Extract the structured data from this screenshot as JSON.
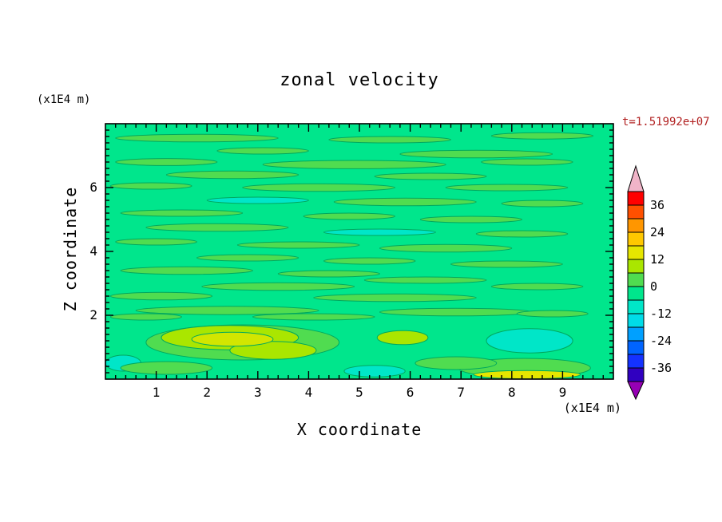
{
  "page": {
    "background": "#ffffff"
  },
  "chart_data": {
    "type": "heatmap",
    "title": "zonal velocity",
    "timestamp": "t=1.51992e+07",
    "timestamp_color": "#B22222",
    "xlabel": "X coordinate",
    "ylabel": "Z coordinate",
    "x_unit_label": "(x1E4 m)",
    "y_unit_label": "(x1E4 m)",
    "xlim": [
      0,
      10
    ],
    "ylim": [
      0,
      8
    ],
    "x_major_ticks": [
      1,
      2,
      3,
      4,
      5,
      6,
      7,
      8,
      9
    ],
    "y_major_ticks": [
      2,
      4,
      6
    ],
    "minor_tick_step": 0.2,
    "grid": false,
    "legend_position": "right",
    "field": {
      "background_color": "#00E68C",
      "contour_line_color": "#00A85E",
      "features": [
        {
          "x": 1.8,
          "y": 7.55,
          "rx": 1.6,
          "ry": 0.12,
          "fill": "#50DC50"
        },
        {
          "x": 5.6,
          "y": 7.5,
          "rx": 1.2,
          "ry": 0.1,
          "fill": "#50DC50"
        },
        {
          "x": 8.6,
          "y": 7.62,
          "rx": 1.0,
          "ry": 0.1,
          "fill": "#50DC50"
        },
        {
          "x": 3.1,
          "y": 7.15,
          "rx": 0.9,
          "ry": 0.1,
          "fill": "#50DC50"
        },
        {
          "x": 7.3,
          "y": 7.05,
          "rx": 1.5,
          "ry": 0.12,
          "fill": "#50DC50"
        },
        {
          "x": 1.2,
          "y": 6.8,
          "rx": 1.0,
          "ry": 0.11,
          "fill": "#50DC50"
        },
        {
          "x": 4.9,
          "y": 6.72,
          "rx": 1.8,
          "ry": 0.13,
          "fill": "#50DC50"
        },
        {
          "x": 8.3,
          "y": 6.8,
          "rx": 0.9,
          "ry": 0.1,
          "fill": "#50DC50"
        },
        {
          "x": 2.5,
          "y": 6.4,
          "rx": 1.3,
          "ry": 0.12,
          "fill": "#50DC50"
        },
        {
          "x": 6.4,
          "y": 6.35,
          "rx": 1.1,
          "ry": 0.1,
          "fill": "#50DC50"
        },
        {
          "x": 0.9,
          "y": 6.05,
          "rx": 0.8,
          "ry": 0.1,
          "fill": "#50DC50"
        },
        {
          "x": 4.2,
          "y": 6.0,
          "rx": 1.5,
          "ry": 0.12,
          "fill": "#50DC50"
        },
        {
          "x": 7.9,
          "y": 6.0,
          "rx": 1.2,
          "ry": 0.1,
          "fill": "#50DC50"
        },
        {
          "x": 3.0,
          "y": 5.6,
          "rx": 1.0,
          "ry": 0.1,
          "fill": "#00E6C8"
        },
        {
          "x": 5.9,
          "y": 5.55,
          "rx": 1.4,
          "ry": 0.12,
          "fill": "#50DC50"
        },
        {
          "x": 1.5,
          "y": 5.2,
          "rx": 1.2,
          "ry": 0.1,
          "fill": "#50DC50"
        },
        {
          "x": 8.6,
          "y": 5.5,
          "rx": 0.8,
          "ry": 0.1,
          "fill": "#50DC50"
        },
        {
          "x": 4.8,
          "y": 5.1,
          "rx": 0.9,
          "ry": 0.1,
          "fill": "#50DC50"
        },
        {
          "x": 7.2,
          "y": 5.0,
          "rx": 1.0,
          "ry": 0.1,
          "fill": "#50DC50"
        },
        {
          "x": 2.2,
          "y": 4.75,
          "rx": 1.4,
          "ry": 0.12,
          "fill": "#50DC50"
        },
        {
          "x": 5.4,
          "y": 4.6,
          "rx": 1.1,
          "ry": 0.1,
          "fill": "#00E6C8"
        },
        {
          "x": 8.2,
          "y": 4.55,
          "rx": 0.9,
          "ry": 0.1,
          "fill": "#50DC50"
        },
        {
          "x": 1.0,
          "y": 4.3,
          "rx": 0.8,
          "ry": 0.1,
          "fill": "#50DC50"
        },
        {
          "x": 3.8,
          "y": 4.2,
          "rx": 1.2,
          "ry": 0.1,
          "fill": "#50DC50"
        },
        {
          "x": 6.7,
          "y": 4.1,
          "rx": 1.3,
          "ry": 0.12,
          "fill": "#50DC50"
        },
        {
          "x": 2.8,
          "y": 3.8,
          "rx": 1.0,
          "ry": 0.1,
          "fill": "#50DC50"
        },
        {
          "x": 5.2,
          "y": 3.7,
          "rx": 0.9,
          "ry": 0.1,
          "fill": "#50DC50"
        },
        {
          "x": 7.9,
          "y": 3.6,
          "rx": 1.1,
          "ry": 0.1,
          "fill": "#50DC50"
        },
        {
          "x": 1.6,
          "y": 3.4,
          "rx": 1.3,
          "ry": 0.12,
          "fill": "#50DC50"
        },
        {
          "x": 4.4,
          "y": 3.3,
          "rx": 1.0,
          "ry": 0.1,
          "fill": "#50DC50"
        },
        {
          "x": 6.3,
          "y": 3.1,
          "rx": 1.2,
          "ry": 0.1,
          "fill": "#50DC50"
        },
        {
          "x": 3.4,
          "y": 2.9,
          "rx": 1.5,
          "ry": 0.12,
          "fill": "#50DC50"
        },
        {
          "x": 8.5,
          "y": 2.9,
          "rx": 0.9,
          "ry": 0.1,
          "fill": "#50DC50"
        },
        {
          "x": 1.1,
          "y": 2.6,
          "rx": 1.0,
          "ry": 0.12,
          "fill": "#50DC50"
        },
        {
          "x": 5.7,
          "y": 2.55,
          "rx": 1.6,
          "ry": 0.12,
          "fill": "#50DC50"
        },
        {
          "x": 2.4,
          "y": 2.15,
          "rx": 1.8,
          "ry": 0.13,
          "fill": "#50DC50"
        },
        {
          "x": 6.9,
          "y": 2.1,
          "rx": 1.5,
          "ry": 0.12,
          "fill": "#50DC50"
        },
        {
          "x": 4.1,
          "y": 1.95,
          "rx": 1.2,
          "ry": 0.1,
          "fill": "#50DC50"
        },
        {
          "x": 8.8,
          "y": 2.05,
          "rx": 0.7,
          "ry": 0.1,
          "fill": "#50DC50"
        },
        {
          "x": 0.8,
          "y": 1.95,
          "rx": 0.7,
          "ry": 0.1,
          "fill": "#50DC50"
        },
        {
          "x": 2.7,
          "y": 1.15,
          "rx": 1.9,
          "ry": 0.55,
          "fill": "#50DC50"
        },
        {
          "x": 2.45,
          "y": 1.3,
          "rx": 1.35,
          "ry": 0.38,
          "fill": "#AAE600"
        },
        {
          "x": 3.3,
          "y": 0.9,
          "rx": 0.85,
          "ry": 0.28,
          "fill": "#AAE600"
        },
        {
          "x": 2.5,
          "y": 1.25,
          "rx": 0.8,
          "ry": 0.22,
          "fill": "#D2E600"
        },
        {
          "x": 5.85,
          "y": 1.3,
          "rx": 0.5,
          "ry": 0.22,
          "fill": "#AAE600"
        },
        {
          "x": 8.35,
          "y": 1.2,
          "rx": 0.85,
          "ry": 0.38,
          "fill": "#00E6C8"
        },
        {
          "x": 0.35,
          "y": 0.5,
          "rx": 0.35,
          "ry": 0.25,
          "fill": "#00E6C8"
        },
        {
          "x": 5.3,
          "y": 0.25,
          "rx": 0.6,
          "ry": 0.18,
          "fill": "#00E6C8"
        },
        {
          "x": 8.25,
          "y": 0.35,
          "rx": 1.3,
          "ry": 0.3,
          "fill": "#50DC50"
        },
        {
          "x": 8.3,
          "y": 0.14,
          "rx": 1.05,
          "ry": 0.13,
          "fill": "#E6E600"
        },
        {
          "x": 6.9,
          "y": 0.5,
          "rx": 0.8,
          "ry": 0.2,
          "fill": "#50DC50"
        },
        {
          "x": 1.2,
          "y": 0.35,
          "rx": 0.9,
          "ry": 0.2,
          "fill": "#50DC50"
        }
      ]
    },
    "colorbar": {
      "min": -42,
      "max": 42,
      "step": 6,
      "band_colors_low_to_high": [
        "#3000C0",
        "#1432FF",
        "#0064FF",
        "#00A0FF",
        "#00DCE8",
        "#00E6C8",
        "#00E68C",
        "#50DC50",
        "#AAE600",
        "#E6E600",
        "#FFC800",
        "#FF9600",
        "#FF5000",
        "#FF0000"
      ],
      "tick_values": [
        -36,
        -24,
        -12,
        0,
        12,
        24,
        36
      ],
      "arrow_high_color": "#F0B4C8",
      "arrow_low_color": "#9600B4"
    }
  }
}
